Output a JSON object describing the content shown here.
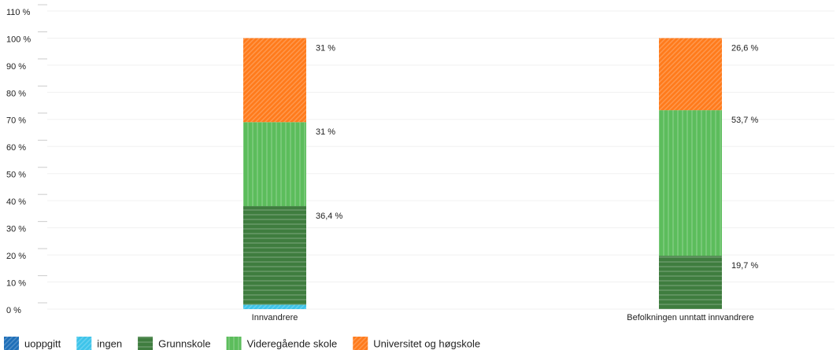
{
  "chart_data": {
    "type": "stacked_bar",
    "categories": [
      "Innvandrere",
      "Befolkningen unntatt innvandrere"
    ],
    "series": [
      {
        "name": "uoppgitt",
        "color": "#1f6fb8",
        "values": [
          0,
          0
        ],
        "value_labels": [
          null,
          null
        ]
      },
      {
        "name": "ingen",
        "color": "#3ec4ea",
        "values": [
          1.6,
          0
        ],
        "value_labels": [
          null,
          null
        ]
      },
      {
        "name": "Grunnskole",
        "color": "#3f7d3f",
        "values": [
          36.4,
          19.7
        ],
        "value_labels": [
          "36,4 %",
          "19,7 %"
        ]
      },
      {
        "name": "Videregående skole",
        "color": "#5cbd5c",
        "values": [
          31,
          53.7
        ],
        "value_labels": [
          "31 %",
          "53,7 %"
        ]
      },
      {
        "name": "Universitet og høgskole",
        "color": "#ff7b1c",
        "values": [
          31,
          26.6
        ],
        "value_labels": [
          "31 %",
          "26,6 %"
        ]
      }
    ],
    "ylim": [
      0,
      110
    ],
    "yticks": [
      {
        "value": 0,
        "label": "0 %"
      },
      {
        "value": 10,
        "label": "10 %"
      },
      {
        "value": 20,
        "label": "20 %"
      },
      {
        "value": 30,
        "label": "30 %"
      },
      {
        "value": 40,
        "label": "40 %"
      },
      {
        "value": 50,
        "label": "50 %"
      },
      {
        "value": 60,
        "label": "60 %"
      },
      {
        "value": 70,
        "label": "70 %"
      },
      {
        "value": 80,
        "label": "80 %"
      },
      {
        "value": 90,
        "label": "90 %"
      },
      {
        "value": 100,
        "label": "100 %"
      },
      {
        "value": 110,
        "label": "110 %"
      }
    ],
    "grid": true
  }
}
